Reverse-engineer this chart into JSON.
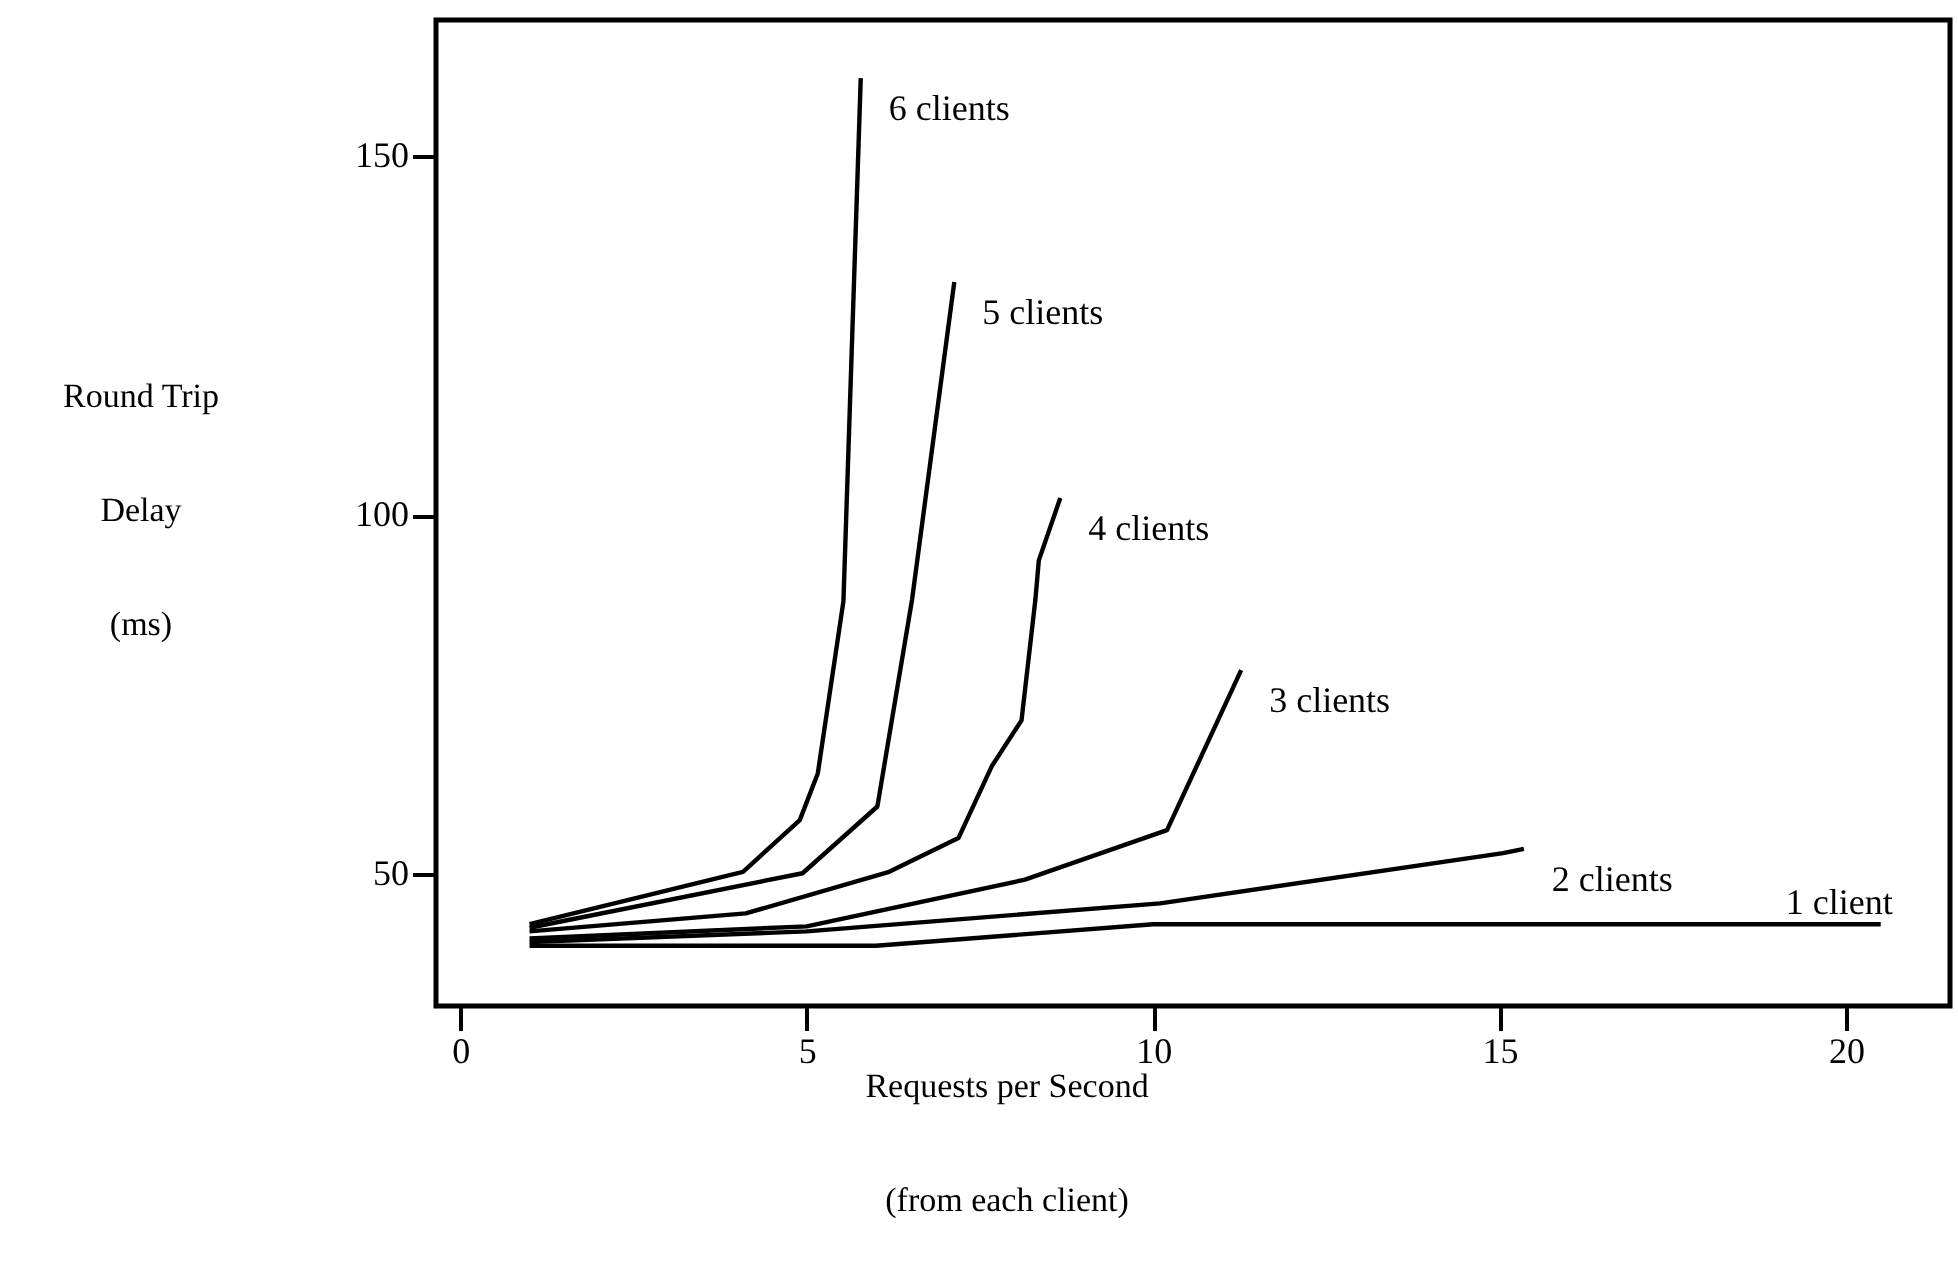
{
  "chart_data": {
    "type": "line",
    "xlabel": "Requests per Second\n(from each client)",
    "ylabel": "Round Trip\nDelay\n(ms)",
    "xlim": [
      -0.35,
      21.5
    ],
    "ylim": [
      31.6,
      169
    ],
    "xticks": [
      0,
      5,
      10,
      15,
      20
    ],
    "yticks": [
      50,
      100,
      150
    ],
    "grid": false,
    "line_style": "solid",
    "marker": "none",
    "series": [
      {
        "name": "1 client",
        "color": "#000000",
        "x": [
          1,
          6,
          10,
          20.5
        ],
        "values": [
          40,
          40,
          43,
          43
        ]
      },
      {
        "name": "2 clients",
        "color": "#000000",
        "x": [
          1,
          5,
          10.1,
          15.05,
          15.35
        ],
        "values": [
          40.5,
          42,
          45.9,
          52.9,
          53.5
        ]
      },
      {
        "name": "3 clients",
        "color": "#000000",
        "x": [
          1,
          5,
          8.15,
          10.2,
          11.27
        ],
        "values": [
          41,
          42.7,
          49.2,
          56.1,
          78.4
        ]
      },
      {
        "name": "4 clients",
        "color": "#000000",
        "x": [
          1,
          4.12,
          6.19,
          7.19,
          7.67,
          8.1,
          8.3,
          8.35,
          8.66
        ],
        "values": [
          42,
          44.5,
          50.3,
          55,
          65,
          71.4,
          88.2,
          93.7,
          102.4
        ]
      },
      {
        "name": "5 clients",
        "color": "#000000",
        "x": [
          1,
          4.94,
          6.02,
          6.52,
          7.13
        ],
        "values": [
          42.5,
          50.1,
          59.4,
          88.2,
          132.5
        ]
      },
      {
        "name": "6 clients",
        "color": "#000000",
        "x": [
          1,
          4.08,
          4.9,
          5.16,
          5.53,
          5.78
        ],
        "values": [
          43,
          50.3,
          57.5,
          64,
          88,
          160.9
        ]
      }
    ]
  }
}
